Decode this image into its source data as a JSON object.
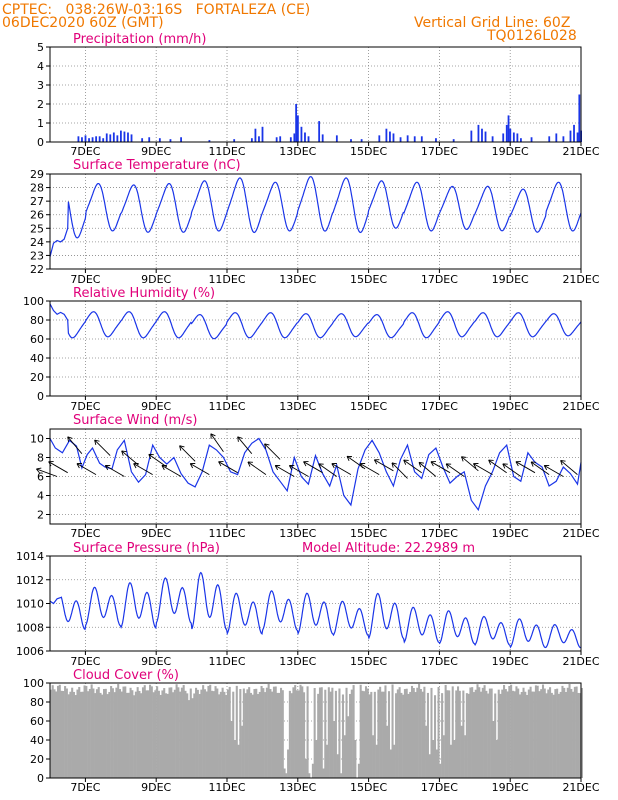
{
  "header": {
    "left_line1": "CPTEC:   038:26W-03:16S   FORTALEZA (CE)",
    "left_line2": "06DEC2020 60Z (GMT)",
    "right_line1": "Vertical Grid Line: 60Z",
    "right_line2": "TQ0126L028"
  },
  "colors": {
    "header": "#f07800",
    "title": "#e0007a",
    "series": "#1a35e8",
    "cloud": "#aaaaaa",
    "arrow": "#000000"
  },
  "x_axis": {
    "start": 6.0,
    "end": 21.0,
    "ticks": [
      7,
      9,
      11,
      13,
      15,
      17,
      19,
      21
    ],
    "tick_labels": [
      "7DEC",
      "9DEC",
      "11DEC",
      "13DEC",
      "15DEC",
      "17DEC",
      "19DEC",
      "21DEC"
    ]
  },
  "chart_data": [
    {
      "type": "bar",
      "title": "Precipitation (mm/h)",
      "ylim": [
        0,
        5
      ],
      "yticks": [
        0,
        1,
        2,
        3,
        4,
        5
      ],
      "x": [
        6.8,
        6.9,
        7.0,
        7.1,
        7.2,
        7.3,
        7.4,
        7.5,
        7.6,
        7.7,
        7.8,
        7.9,
        8.0,
        8.1,
        8.2,
        8.3,
        8.6,
        8.8,
        9.1,
        9.4,
        9.7,
        10.5,
        11.2,
        11.7,
        11.8,
        11.9,
        12.0,
        12.4,
        12.5,
        12.8,
        12.9,
        12.95,
        13.0,
        13.1,
        13.2,
        13.3,
        13.6,
        13.7,
        14.1,
        14.5,
        14.8,
        15.3,
        15.5,
        15.6,
        15.7,
        15.9,
        16.1,
        16.3,
        16.5,
        16.9,
        17.4,
        17.9,
        18.1,
        18.2,
        18.3,
        18.5,
        18.8,
        18.9,
        18.95,
        19.0,
        19.1,
        19.2,
        19.3,
        19.6,
        20.1,
        20.3,
        20.5,
        20.7,
        20.8,
        20.9,
        20.95,
        21.0
      ],
      "values": [
        0.3,
        0.25,
        0.35,
        0.2,
        0.25,
        0.3,
        0.3,
        0.2,
        0.45,
        0.4,
        0.5,
        0.35,
        0.6,
        0.55,
        0.5,
        0.4,
        0.2,
        0.25,
        0.2,
        0.15,
        0.25,
        0.1,
        0.15,
        0.2,
        0.7,
        0.3,
        0.8,
        0.25,
        0.3,
        0.25,
        0.45,
        2.0,
        1.4,
        0.8,
        0.5,
        0.3,
        1.1,
        0.4,
        0.35,
        0.15,
        0.15,
        0.35,
        0.7,
        0.55,
        0.45,
        0.25,
        0.35,
        0.3,
        0.3,
        0.2,
        0.15,
        0.6,
        0.9,
        0.7,
        0.55,
        0.3,
        0.45,
        0.9,
        1.4,
        0.7,
        0.5,
        0.45,
        0.2,
        0.25,
        0.3,
        0.45,
        0.3,
        0.6,
        0.9,
        0.5,
        2.5,
        0.6
      ]
    },
    {
      "type": "line",
      "title": "Surface Temperature (nC)",
      "ylim": [
        22,
        29
      ],
      "yticks": [
        22,
        23,
        24,
        25,
        26,
        27,
        28,
        29
      ],
      "base": 26.4,
      "amplitude": 1.5,
      "phase": 7.6,
      "start_curve": {
        "x": [
          6.0,
          6.1,
          6.2,
          6.3,
          6.4,
          6.5
        ],
        "y": [
          22.9,
          23.9,
          24.1,
          24.0,
          24.2,
          25.0
        ]
      },
      "peaks": [
        28.1,
        28.2,
        28.1,
        28.2,
        28.4,
        28.6,
        28.3,
        28.7,
        28.6,
        28.4,
        28.3,
        28.0,
        28.0,
        27.8,
        28.3
      ],
      "troughs": [
        24.4,
        24.9,
        24.8,
        24.8,
        24.9,
        24.8,
        24.9,
        24.9,
        24.8,
        25.1,
        24.9,
        25.0,
        24.9,
        24.8,
        24.9
      ]
    },
    {
      "type": "line",
      "title": "Relative Humidity (%)",
      "ylim": [
        0,
        100
      ],
      "yticks": [
        0,
        20,
        40,
        60,
        80,
        100
      ],
      "base": 75,
      "amplitude": 11,
      "phase": 4.4,
      "start_curve": {
        "x": [
          6.0,
          6.1,
          6.2,
          6.3,
          6.4,
          6.5
        ],
        "y": [
          97,
          90,
          86,
          88,
          86,
          80
        ]
      },
      "peaks": [
        88,
        88,
        88,
        88,
        85,
        87,
        87,
        86,
        86,
        85,
        87,
        88,
        87,
        87,
        86
      ],
      "troughs": [
        62,
        63,
        62,
        62,
        61,
        62,
        62,
        62,
        63,
        62,
        62,
        63,
        63,
        63,
        64
      ]
    },
    {
      "type": "line",
      "title": "Surface Wind (m/s)",
      "ylim": [
        1,
        11
      ],
      "yticks": [
        2,
        4,
        6,
        8,
        10
      ],
      "series": [
        {
          "x": [
            6.0,
            6.15,
            6.35,
            6.55,
            6.75,
            6.9,
            7.05,
            7.2,
            7.4,
            7.55,
            7.75,
            7.9,
            8.1,
            8.3,
            8.5,
            8.7,
            8.9,
            9.1,
            9.3,
            9.5,
            9.7,
            9.9,
            10.1,
            10.3,
            10.5,
            10.7,
            10.9,
            11.1,
            11.3,
            11.5,
            11.7,
            11.9,
            12.1,
            12.3,
            12.5,
            12.7,
            12.9,
            13.1,
            13.3,
            13.5,
            13.7,
            13.9,
            14.1,
            14.3,
            14.5,
            14.7,
            14.9,
            15.1,
            15.3,
            15.5,
            15.7,
            15.9,
            16.1,
            16.3,
            16.5,
            16.7,
            16.9,
            17.1,
            17.3,
            17.5,
            17.7,
            17.9,
            18.1,
            18.3,
            18.5,
            18.7,
            18.9,
            19.1,
            19.3,
            19.5,
            19.7,
            19.9,
            20.1,
            20.3,
            20.5,
            20.7,
            20.9,
            21.0
          ],
          "y": [
            10.0,
            9.0,
            8.5,
            9.8,
            9.2,
            6.9,
            8.3,
            9.0,
            7.4,
            7.0,
            6.8,
            8.8,
            9.8,
            6.5,
            5.4,
            6.2,
            9.3,
            8.0,
            7.3,
            8.0,
            6.3,
            5.3,
            4.9,
            6.5,
            9.3,
            8.8,
            8.0,
            6.5,
            6.2,
            8.5,
            9.5,
            10.0,
            8.8,
            6.5,
            5.5,
            4.5,
            8.0,
            6.0,
            5.2,
            8.2,
            6.3,
            5.0,
            7.2,
            4.0,
            3.0,
            6.8,
            8.8,
            9.8,
            8.5,
            6.5,
            5.0,
            7.8,
            9.3,
            6.5,
            5.8,
            8.3,
            9.0,
            7.0,
            5.3,
            6.0,
            6.5,
            3.5,
            2.5,
            5.0,
            6.5,
            8.5,
            9.3,
            6.0,
            5.5,
            8.5,
            7.5,
            7.0,
            5.0,
            5.5,
            7.0,
            6.3,
            5.2,
            7.5
          ]
        }
      ],
      "barbs_x": [
        6.2,
        6.5,
        6.9,
        7.3,
        7.7,
        8.1,
        8.5,
        8.9,
        9.3,
        9.7,
        10.1,
        10.5,
        10.9,
        11.3,
        11.7,
        12.1,
        12.5,
        12.9,
        13.3,
        13.7,
        14.1,
        14.5,
        14.9,
        15.3,
        15.7,
        16.1,
        16.5,
        16.9,
        17.3,
        17.7,
        18.1,
        18.5,
        18.9,
        19.3,
        19.7,
        20.1,
        20.5,
        20.9
      ],
      "barbs_y": [
        6.0,
        6.4,
        8.4,
        6.2,
        8.2,
        6.0,
        7.2,
        6.2,
        7.0,
        6.0,
        7.6,
        6.2,
        8.6,
        6.4,
        8.4,
        6.2,
        7.8,
        6.0,
        6.0,
        6.4,
        6.0,
        6.2,
        6.8,
        6.2,
        6.6,
        5.8,
        6.4,
        6.0,
        6.4,
        6.0,
        6.6,
        6.2,
        6.4,
        6.0,
        6.4,
        6.2,
        6.0,
        6.2
      ],
      "barbs_dir_deg": [
        160,
        150,
        130,
        150,
        135,
        150,
        140,
        150,
        145,
        150,
        135,
        150,
        125,
        150,
        130,
        145,
        135,
        150,
        150,
        150,
        145,
        150,
        145,
        150,
        150,
        135,
        145,
        140,
        150,
        145,
        140,
        150,
        145,
        145,
        150,
        145,
        150,
        140
      ]
    },
    {
      "type": "line",
      "title": "Surface Pressure (hPa)",
      "annotation": "Model Altitude: 22.2989  m",
      "ylim": [
        1006,
        1014
      ],
      "yticks": [
        1006,
        1008,
        1010,
        1012,
        1014
      ],
      "base": 1009.4,
      "trend": -0.2,
      "amplitude": 1.3,
      "semi_diurnal": 0.6,
      "phase": 3.0,
      "start_curve": {
        "x": [
          6.0,
          6.1,
          6.2,
          6.3
        ],
        "y": [
          1010.2,
          1010.0,
          1010.4,
          1010.5
        ]
      },
      "peak_values": [
        1011.0,
        1011.5,
        1011.9,
        1012.3,
        1012.8,
        1011.0,
        1011.2,
        1011.0,
        1010.3,
        1011.0,
        1009.8,
        1009.5,
        1009.0,
        1008.8,
        1008.3
      ],
      "trough_values": [
        1007.7,
        1008.0,
        1007.8,
        1008.2,
        1007.6,
        1007.3,
        1007.6,
        1007.3,
        1007.2,
        1006.9,
        1006.6,
        1006.5,
        1006.4,
        1006.2,
        1006.2
      ]
    },
    {
      "type": "bar",
      "title": "Cloud Cover (%)",
      "ylim": [
        0,
        100
      ],
      "yticks": [
        0,
        20,
        40,
        60,
        80,
        100
      ],
      "typical": 93,
      "gaps": [
        {
          "x": 9.9,
          "value": 82
        },
        {
          "x": 10.0,
          "value": 84
        },
        {
          "x": 11.1,
          "value": 60
        },
        {
          "x": 11.2,
          "value": 40
        },
        {
          "x": 11.3,
          "value": 35
        },
        {
          "x": 11.4,
          "value": 55
        },
        {
          "x": 12.6,
          "value": 10
        },
        {
          "x": 12.65,
          "value": 5
        },
        {
          "x": 12.7,
          "value": 30
        },
        {
          "x": 13.2,
          "value": 20
        },
        {
          "x": 13.3,
          "value": 5
        },
        {
          "x": 13.35,
          "value": 0
        },
        {
          "x": 13.4,
          "value": 15
        },
        {
          "x": 13.5,
          "value": 40
        },
        {
          "x": 13.7,
          "value": 10
        },
        {
          "x": 13.8,
          "value": 35
        },
        {
          "x": 14.0,
          "value": 60
        },
        {
          "x": 14.1,
          "value": 25
        },
        {
          "x": 14.2,
          "value": 5
        },
        {
          "x": 14.3,
          "value": 45
        },
        {
          "x": 14.4,
          "value": 65
        },
        {
          "x": 14.6,
          "value": 40
        },
        {
          "x": 14.65,
          "value": 0
        },
        {
          "x": 14.7,
          "value": 15
        },
        {
          "x": 15.1,
          "value": 45
        },
        {
          "x": 15.2,
          "value": 35
        },
        {
          "x": 15.5,
          "value": 55
        },
        {
          "x": 15.6,
          "value": 30
        },
        {
          "x": 15.7,
          "value": 35
        },
        {
          "x": 16.6,
          "value": 55
        },
        {
          "x": 16.7,
          "value": 25
        },
        {
          "x": 16.8,
          "value": 40
        },
        {
          "x": 16.9,
          "value": 30
        },
        {
          "x": 17.0,
          "value": 15
        },
        {
          "x": 17.1,
          "value": 45
        },
        {
          "x": 17.3,
          "value": 35
        },
        {
          "x": 17.4,
          "value": 40
        },
        {
          "x": 17.6,
          "value": 55
        },
        {
          "x": 17.7,
          "value": 45
        },
        {
          "x": 18.5,
          "value": 60
        },
        {
          "x": 18.6,
          "value": 40
        }
      ]
    }
  ]
}
